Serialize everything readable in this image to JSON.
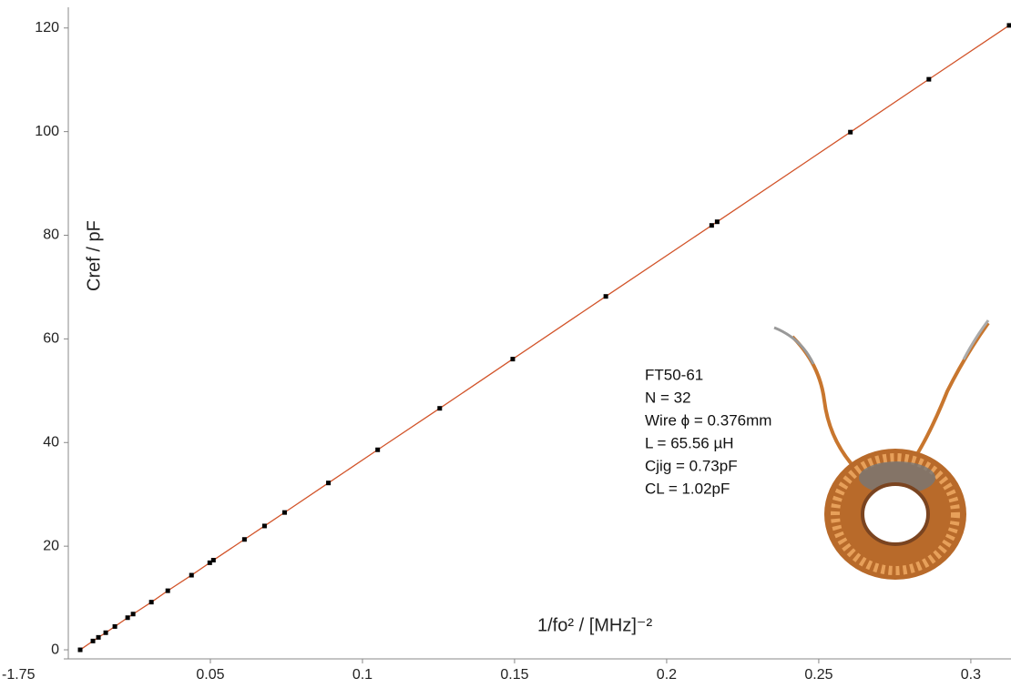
{
  "chart_data": {
    "type": "scatter-line",
    "x_label": "1/fo²  / [MHz]⁻²",
    "y_label": "Cref / pF",
    "xlim": [
      0.0033,
      0.3132
    ],
    "ylim": [
      -1.75,
      125.4
    ],
    "xticks": [
      0.05,
      0.1,
      0.15,
      0.2,
      0.25,
      0.3
    ],
    "yticks": [
      -1.75,
      0,
      20,
      40,
      60,
      80,
      100,
      120
    ],
    "line_color": "#d2542a",
    "marker_color": "#000000",
    "x": [
      0.0072,
      0.0114,
      0.0132,
      0.0156,
      0.0186,
      0.0228,
      0.0246,
      0.0306,
      0.036,
      0.0438,
      0.0498,
      0.051,
      0.0612,
      0.0678,
      0.0744,
      0.0888,
      0.105,
      0.1254,
      0.1494,
      0.18,
      0.2148,
      0.2166,
      0.2604,
      0.2862,
      0.3126
    ],
    "values": [
      0,
      1.7,
      2.4,
      3.3,
      4.5,
      6.2,
      6.9,
      9.2,
      11.4,
      14.4,
      16.8,
      17.3,
      21.3,
      23.9,
      26.5,
      32.2,
      38.6,
      46.6,
      56.1,
      68.2,
      81.9,
      82.6,
      99.9,
      110.1,
      120.5
    ],
    "annotations": [
      "FT50-61",
      "N = 32",
      "Wire ϕ = 0.376mm",
      "L = 65.56 µH",
      "Cjig = 0.73pF",
      "CL = 1.02pF"
    ]
  }
}
